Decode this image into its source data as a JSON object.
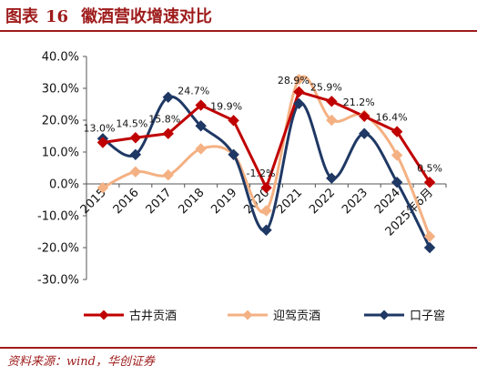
{
  "figure": {
    "title_prefix": "图表",
    "title_number": "16",
    "title": "徽酒营收增速对比",
    "source": "资料来源：wind，华创证券"
  },
  "colors": {
    "brand": "#9e1b1b"
  },
  "chart_data": {
    "type": "line",
    "title": "",
    "xlabel": "",
    "ylabel": "",
    "categories": [
      "2015",
      "2016",
      "2017",
      "2018",
      "2019",
      "2020",
      "2021",
      "2022",
      "2023",
      "2024",
      "2025年6月"
    ],
    "ylim": [
      -30,
      40
    ],
    "yticks": [
      -30,
      -20,
      -10,
      0,
      10,
      20,
      30,
      40
    ],
    "ytick_labels": [
      "-30.0%",
      "-20.0%",
      "-10.0%",
      "0.0%",
      "10.0%",
      "20.0%",
      "30.0%",
      "40.0%"
    ],
    "grid": false,
    "legend_position": "bottom",
    "series": [
      {
        "name": "古井贡酒",
        "color": "#c00000",
        "marker": "diamond",
        "smooth": false,
        "values": [
          13.0,
          14.5,
          15.8,
          24.7,
          19.9,
          -1.2,
          28.9,
          25.9,
          21.2,
          16.4,
          0.5
        ],
        "labels": [
          "13.0%",
          "14.5%",
          "15.8%",
          "24.7%",
          "19.9%",
          "-1.2%",
          "28.9%",
          "25.9%",
          "21.2%",
          "16.4%",
          "0.5%"
        ]
      },
      {
        "name": "迎驾贡酒",
        "color": "#f4b183",
        "marker": "diamond",
        "smooth": true,
        "values": [
          -1.2,
          3.8,
          2.8,
          11.0,
          9.2,
          -8.4,
          32.8,
          20.0,
          21.5,
          9.0,
          -16.5
        ],
        "labels": []
      },
      {
        "name": "口子窖",
        "color": "#1f3864",
        "marker": "diamond",
        "smooth": true,
        "values": [
          14.2,
          9.2,
          27.2,
          18.2,
          9.2,
          -14.5,
          25.2,
          1.8,
          15.8,
          0.5,
          -20.0
        ],
        "labels": []
      }
    ]
  }
}
